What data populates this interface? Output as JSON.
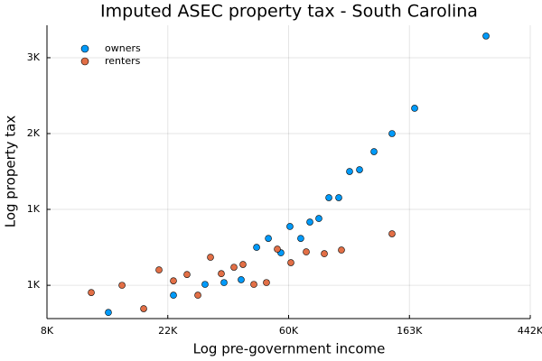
{
  "chart_data": {
    "type": "scatter",
    "title": "Imputed ASEC property tax - South Carolina",
    "x_label": "Log pre-government income",
    "y_label": "Log property tax",
    "xscale": "log",
    "yscale": "log",
    "grid": true,
    "legend_position": "top-left",
    "xlim": [
      8103,
      442413
    ],
    "ylim": [
      534,
      3692
    ],
    "xticks": [
      {
        "value": 8103,
        "label": "8K"
      },
      {
        "value": 22026,
        "label": "22K"
      },
      {
        "value": 59874,
        "label": "60K"
      },
      {
        "value": 162755,
        "label": "163K"
      },
      {
        "value": 442413,
        "label": "442K"
      }
    ],
    "yticks": [
      {
        "value": 665,
        "label": "1K"
      },
      {
        "value": 1097,
        "label": "1K"
      },
      {
        "value": 1808,
        "label": "2K"
      },
      {
        "value": 2981,
        "label": "3K"
      }
    ],
    "series": [
      {
        "name": "owners",
        "color": "#009af9",
        "x": [
          13470,
          23080,
          29980,
          35080,
          40430,
          45940,
          50640,
          56160,
          60530,
          66200,
          71390,
          76900,
          83540,
          90670,
          99180,
          107690,
          121380,
          140910,
          169920,
          306780
        ],
        "values": [
          556,
          623,
          669,
          677,
          690,
          854,
          906,
          824,
          980,
          906,
          1009,
          1033,
          1185,
          1185,
          1408,
          1425,
          1605,
          1808,
          2136,
          3440
        ]
      },
      {
        "name": "renters",
        "color": "#e26f46",
        "x": [
          11690,
          15080,
          18040,
          20480,
          23080,
          25820,
          28250,
          31360,
          34300,
          38090,
          41040,
          44900,
          49840,
          54540,
          61000,
          69280,
          80460,
          92700,
          140910
        ],
        "values": [
          634,
          665,
          570,
          736,
          685,
          714,
          623,
          800,
          718,
          749,
          763,
          669,
          677,
          844,
          772,
          829,
          819,
          839,
          934
        ]
      }
    ]
  }
}
